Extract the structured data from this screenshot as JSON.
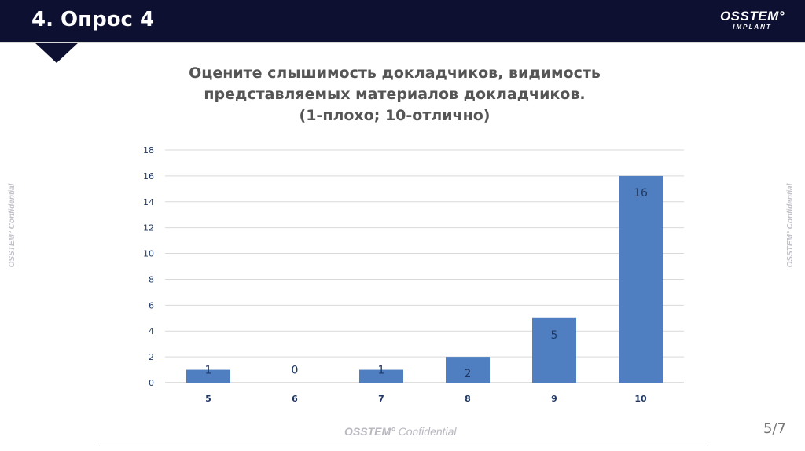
{
  "slide": {
    "title": "4. Опрос 4",
    "logo_main": "OSSTEM°",
    "logo_sub": "IMPLANT",
    "side_watermark": "OSSTEM° Confidential",
    "footer_brand": "OSSTEM°",
    "footer_text": "Confidential",
    "page_number": "5/7"
  },
  "chart_data": {
    "type": "bar",
    "title_lines": [
      "Оцените слышимость докладчиков, видимость",
      "представляемых материалов докладчиков.",
      "(1-плохо; 10-отлично)"
    ],
    "categories": [
      "5",
      "6",
      "7",
      "8",
      "9",
      "10"
    ],
    "values": [
      1,
      0,
      1,
      2,
      5,
      16
    ],
    "ylim": [
      0,
      18
    ],
    "yticks": [
      0,
      2,
      4,
      6,
      8,
      10,
      12,
      14,
      16,
      18
    ],
    "grid": true,
    "legend": "none",
    "bar_color": "#4f7fc0",
    "label_color": "#1f3864",
    "axis_label_color": "#1f3864"
  }
}
